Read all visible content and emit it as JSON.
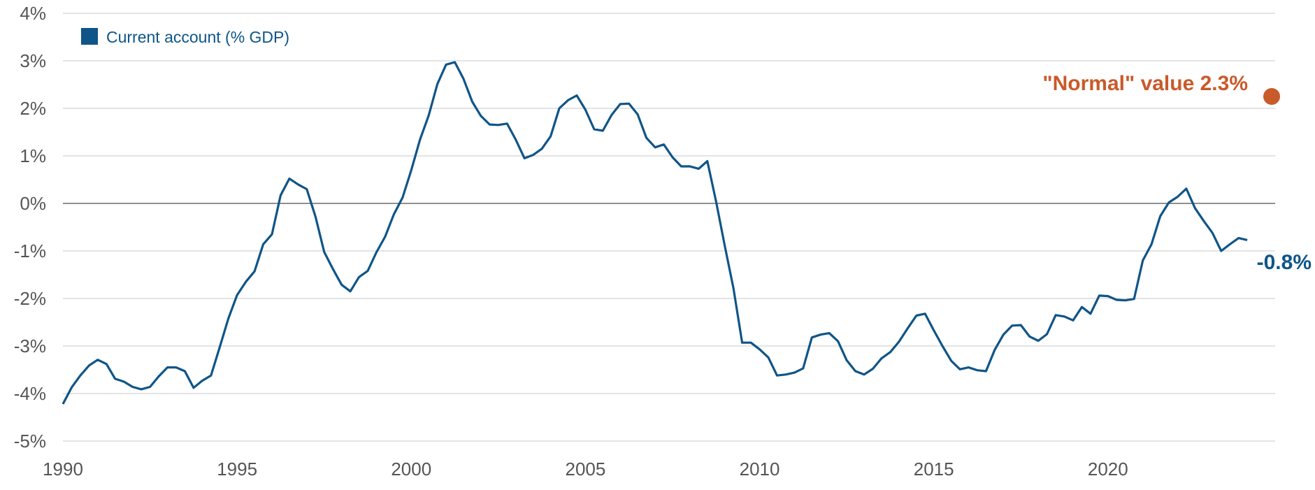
{
  "colors": {
    "series": "#0f5588",
    "normal": "#c95a2a",
    "grid": "#c8c8c8",
    "zero": "#808080",
    "tick": "#555555"
  },
  "chart_data": {
    "type": "line",
    "title": "",
    "xlabel": "",
    "ylabel": "",
    "xlim": [
      1990,
      2024.8
    ],
    "ylim": [
      -5,
      4
    ],
    "x_ticks": [
      1990,
      1995,
      2000,
      2005,
      2010,
      2015,
      2020
    ],
    "y_ticks": [
      -5,
      -4,
      -3,
      -2,
      -1,
      0,
      1,
      2,
      3,
      4
    ],
    "y_tick_labels": [
      "-5%",
      "-4%",
      "-3%",
      "-2%",
      "-1%",
      "0%",
      "1%",
      "2%",
      "3%",
      "4%"
    ],
    "x_tick_labels": [
      "1990",
      "1995",
      "2000",
      "2005",
      "2010",
      "2015",
      "2020"
    ],
    "grid": true,
    "legend_position": "top-left",
    "series": [
      {
        "name": "Current account (% GDP)",
        "x": [
          1990.0,
          1990.25,
          1990.5,
          1990.75,
          1991.0,
          1991.25,
          1991.5,
          1991.75,
          1992.0,
          1992.25,
          1992.5,
          1992.75,
          1993.0,
          1993.25,
          1993.5,
          1993.75,
          1994.0,
          1994.25,
          1994.5,
          1994.75,
          1995.0,
          1995.25,
          1995.5,
          1995.75,
          1996.0,
          1996.25,
          1996.5,
          1996.75,
          1997.0,
          1997.25,
          1997.5,
          1997.75,
          1998.0,
          1998.25,
          1998.5,
          1998.75,
          1999.0,
          1999.25,
          1999.5,
          1999.75,
          2000.0,
          2000.25,
          2000.5,
          2000.75,
          2001.0,
          2001.25,
          2001.5,
          2001.75,
          2002.0,
          2002.25,
          2002.5,
          2002.75,
          2003.0,
          2003.25,
          2003.5,
          2003.75,
          2004.0,
          2004.25,
          2004.5,
          2004.75,
          2005.0,
          2005.25,
          2005.5,
          2005.75,
          2006.0,
          2006.25,
          2006.5,
          2006.75,
          2007.0,
          2007.25,
          2007.5,
          2007.75,
          2008.0,
          2008.25,
          2008.5,
          2008.75,
          2009.0,
          2009.25,
          2009.5,
          2009.75,
          2010.0,
          2010.25,
          2010.5,
          2010.75,
          2011.0,
          2011.25,
          2011.5,
          2011.75,
          2012.0,
          2012.25,
          2012.5,
          2012.75,
          2013.0,
          2013.25,
          2013.5,
          2013.75,
          2014.0,
          2014.25,
          2014.5,
          2014.75,
          2015.0,
          2015.25,
          2015.5,
          2015.75,
          2016.0,
          2016.25,
          2016.5,
          2016.75,
          2017.0,
          2017.25,
          2017.5,
          2017.75,
          2018.0,
          2018.25,
          2018.5,
          2018.75,
          2019.0,
          2019.25,
          2019.5,
          2019.75,
          2020.0,
          2020.25,
          2020.5,
          2020.75,
          2021.0,
          2021.25,
          2021.5,
          2021.75,
          2022.0,
          2022.25,
          2022.5,
          2022.75,
          2023.0,
          2023.25,
          2023.5,
          2023.75,
          2024.0
        ],
        "y": [
          -4.22,
          -3.87,
          -3.62,
          -3.41,
          -3.29,
          -3.38,
          -3.69,
          -3.75,
          -3.86,
          -3.91,
          -3.86,
          -3.64,
          -3.45,
          -3.45,
          -3.53,
          -3.88,
          -3.73,
          -3.62,
          -3.03,
          -2.42,
          -1.93,
          -1.65,
          -1.43,
          -0.86,
          -0.65,
          0.17,
          0.52,
          0.4,
          0.3,
          -0.28,
          -1.02,
          -1.38,
          -1.71,
          -1.85,
          -1.55,
          -1.42,
          -1.03,
          -0.7,
          -0.23,
          0.12,
          0.7,
          1.34,
          1.85,
          2.51,
          2.92,
          2.97,
          2.62,
          2.14,
          1.84,
          1.66,
          1.65,
          1.68,
          1.34,
          0.95,
          1.02,
          1.15,
          1.41,
          2.0,
          2.17,
          2.27,
          1.97,
          1.56,
          1.53,
          1.86,
          2.09,
          2.1,
          1.87,
          1.38,
          1.18,
          1.24,
          0.97,
          0.78,
          0.78,
          0.73,
          0.89,
          0.04,
          -0.89,
          -1.79,
          -2.93,
          -2.93,
          -3.07,
          -3.24,
          -3.62,
          -3.6,
          -3.56,
          -3.47,
          -2.82,
          -2.76,
          -2.73,
          -2.9,
          -3.3,
          -3.53,
          -3.6,
          -3.48,
          -3.26,
          -3.13,
          -2.91,
          -2.63,
          -2.36,
          -2.32,
          -2.67,
          -3.0,
          -3.31,
          -3.49,
          -3.45,
          -3.51,
          -3.53,
          -3.08,
          -2.76,
          -2.57,
          -2.56,
          -2.8,
          -2.89,
          -2.75,
          -2.35,
          -2.38,
          -2.46,
          -2.18,
          -2.32,
          -1.94,
          -1.95,
          -2.03,
          -2.04,
          -2.01,
          -1.2,
          -0.86,
          -0.27,
          0.02,
          0.14,
          0.31,
          -0.1,
          -0.37,
          -0.62,
          -1.0,
          -0.86,
          -0.73,
          -0.77
        ]
      }
    ],
    "annotations": {
      "last_value_label": "-0.8%",
      "normal_label": "\"Normal\" value 2.3%",
      "normal_value": 2.25,
      "normal_x": 2024.7
    }
  }
}
